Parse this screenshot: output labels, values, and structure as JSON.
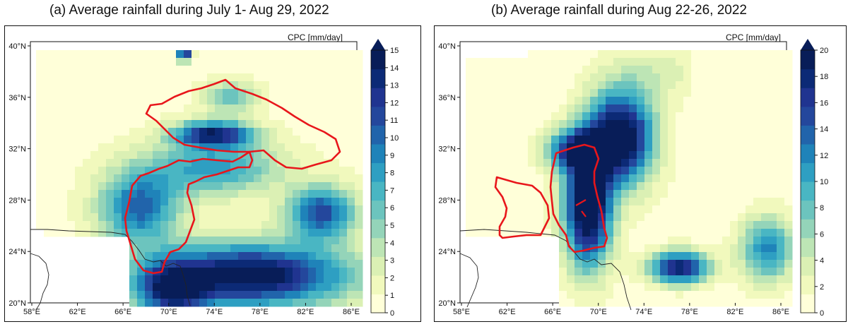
{
  "panels": [
    {
      "title": "(a) Average rainfall during July 1- Aug 29, 2022",
      "unit_label": "CPC [mm/day]",
      "lon_ticks": [
        "58°E",
        "62°E",
        "66°E",
        "70°E",
        "74°E",
        "78°E",
        "82°E",
        "86°E"
      ],
      "lat_ticks": [
        "20°N",
        "24°N",
        "28°N",
        "32°N",
        "36°N",
        "40°N"
      ],
      "colorbar_ticks": [
        "0",
        "1",
        "2",
        "3",
        "4",
        "5",
        "6",
        "7",
        "8",
        "9",
        "10",
        "11",
        "12",
        "13",
        "14",
        "15"
      ]
    },
    {
      "title": "(b) Average rainfall during Aug 22-26, 2022",
      "unit_label": "CPC [mm/day]",
      "lon_ticks": [
        "58°E",
        "62°E",
        "66°E",
        "70°E",
        "74°E",
        "78°E",
        "82°E",
        "86°E"
      ],
      "lat_ticks": [
        "20°N",
        "24°N",
        "28°N",
        "32°N",
        "36°N",
        "40°N"
      ],
      "colorbar_ticks": [
        "0",
        "2",
        "4",
        "6",
        "8",
        "10",
        "12",
        "14",
        "16",
        "18",
        "20"
      ]
    }
  ],
  "colors": {
    "colormap": [
      "#ffffd9",
      "#f1f9bd",
      "#dbf0b4",
      "#bde5b5",
      "#94d4b9",
      "#6cc4be",
      "#49b6c3",
      "#2e9fc2",
      "#1f83b9",
      "#2164ab",
      "#24479c",
      "#203490",
      "#0c2a76",
      "#081d58"
    ],
    "boundary": "#e8161b",
    "coast": "#222222"
  }
}
